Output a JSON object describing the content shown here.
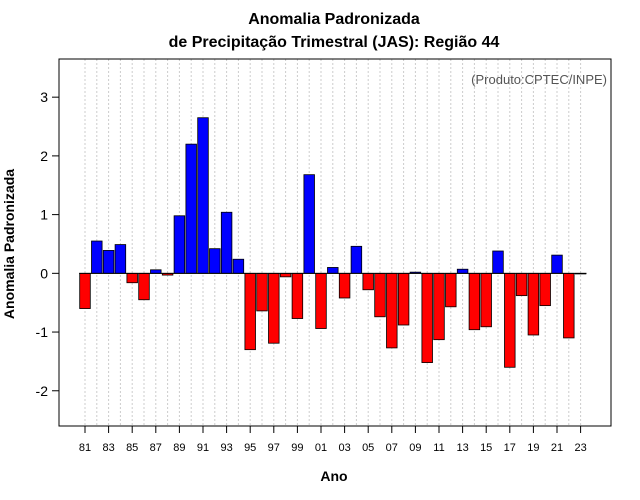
{
  "chart_data": {
    "type": "bar",
    "title_line1": "Anomalia Padronizada",
    "title_line2": "de Precipitação Trimestral (JAS): Região 44",
    "xlabel": "Ano",
    "ylabel": "Anomalia Padronizada",
    "credit": "(Produto:CPTEC/INPE)",
    "ylim": [
      -2.6,
      3.65
    ],
    "yticks": [
      -2,
      -1,
      0,
      1,
      2,
      3
    ],
    "ytick_labels": [
      "-2",
      "-1",
      "0",
      "1",
      "2",
      "3"
    ],
    "xtick_labels": [
      "81",
      "83",
      "85",
      "87",
      "89",
      "91",
      "93",
      "95",
      "97",
      "99",
      "01",
      "03",
      "05",
      "07",
      "09",
      "11",
      "13",
      "15",
      "17",
      "19",
      "21",
      "23"
    ],
    "grid": true,
    "positive_color": "#0000ff",
    "negative_color": "#ff0000",
    "categories": [
      "1981",
      "1982",
      "1983",
      "1984",
      "1985",
      "1986",
      "1987",
      "1988",
      "1989",
      "1990",
      "1991",
      "1992",
      "1993",
      "1994",
      "1995",
      "1996",
      "1997",
      "1998",
      "1999",
      "2000",
      "2001",
      "2002",
      "2003",
      "2004",
      "2005",
      "2006",
      "2007",
      "2008",
      "2009",
      "2010",
      "2011",
      "2012",
      "2013",
      "2014",
      "2015",
      "2016",
      "2017",
      "2018",
      "2019",
      "2020",
      "2021",
      "2022",
      "2023"
    ],
    "values": [
      -0.6,
      0.55,
      0.39,
      0.49,
      -0.16,
      -0.45,
      0.06,
      -0.03,
      0.98,
      2.2,
      2.65,
      0.42,
      1.04,
      0.24,
      -1.3,
      -0.64,
      -1.19,
      -0.06,
      -0.77,
      1.68,
      -0.94,
      0.1,
      -0.42,
      0.46,
      -0.28,
      -0.74,
      -1.27,
      -0.88,
      0.02,
      -1.52,
      -1.13,
      -0.57,
      0.07,
      -0.96,
      -0.91,
      0.38,
      -1.6,
      -0.38,
      -1.05,
      -0.55,
      0.31,
      -1.1,
      0.0
    ]
  }
}
